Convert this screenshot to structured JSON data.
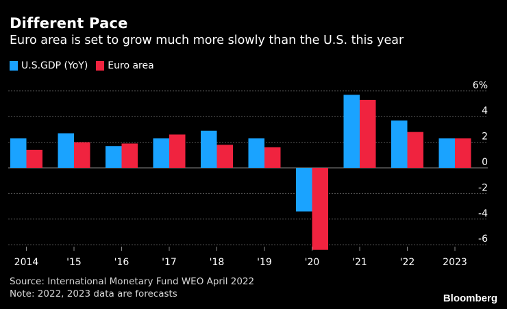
{
  "header": {
    "title": "Different Pace",
    "subtitle": "Euro area is set to grow much more slowly than the U.S. this year"
  },
  "legend": [
    {
      "label": "U.S.GDP (YoY)",
      "color": "#1aa3ff"
    },
    {
      "label": "Euro area",
      "color": "#f0233f"
    }
  ],
  "footer": {
    "source": "Source: International Monetary Fund WEO April 2022",
    "note": "Note: 2022, 2023 data are forecasts",
    "brand": "Bloomberg"
  },
  "chart_data": {
    "type": "bar",
    "title": "Different Pace",
    "xlabel": "",
    "ylabel": "",
    "unit_label": "6%",
    "categories": [
      "2014",
      "'15",
      "'16",
      "'17",
      "'18",
      "'19",
      "'20",
      "'21",
      "'22",
      "'23"
    ],
    "category_labels": [
      "2014",
      "'15",
      "'16",
      "'17",
      "'18",
      "'19",
      "'20",
      "'21",
      "'22",
      "2023"
    ],
    "series": [
      {
        "name": "U.S.GDP (YoY)",
        "color": "#1aa3ff",
        "values": [
          2.3,
          2.7,
          1.7,
          2.3,
          2.9,
          2.3,
          -3.4,
          5.7,
          3.7,
          2.3
        ]
      },
      {
        "name": "Euro area",
        "color": "#f0233f",
        "values": [
          1.4,
          2.0,
          1.9,
          2.6,
          1.8,
          1.6,
          -6.4,
          5.3,
          2.8,
          2.3
        ]
      }
    ],
    "ylim": [
      -6.5,
      6.6
    ],
    "yticks": [
      6,
      4,
      2,
      0,
      -2,
      -4,
      -6
    ],
    "ytick_labels": [
      "6%",
      "4",
      "2",
      "0",
      "-2",
      "-4",
      "-6"
    ],
    "grid": true
  }
}
